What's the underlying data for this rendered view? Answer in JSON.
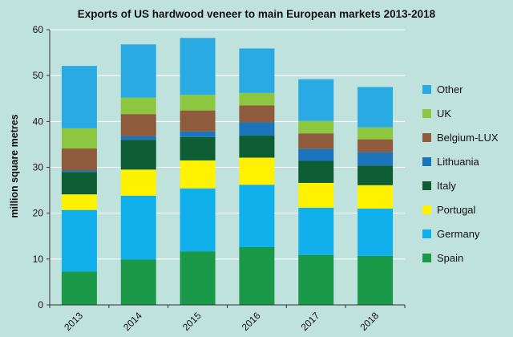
{
  "chart_data": {
    "type": "bar",
    "stacked": true,
    "title": "Exports of US hardwood veneer to main European markets 2013-2018",
    "xlabel": "",
    "ylabel": "million square metres",
    "ylim": [
      0,
      60
    ],
    "yticks": [
      0,
      10,
      20,
      30,
      40,
      50,
      60
    ],
    "grid": true,
    "legend_position": "right",
    "categories": [
      "2013",
      "2014",
      "2015",
      "2016",
      "2017",
      "2018"
    ],
    "series": [
      {
        "name": "Spain",
        "color": "#1a9a48",
        "values": [
          7.3,
          9.9,
          11.7,
          12.6,
          10.9,
          10.7
        ]
      },
      {
        "name": "Germany",
        "color": "#10b0ec",
        "values": [
          13.4,
          13.9,
          13.7,
          13.6,
          10.3,
          10.3
        ]
      },
      {
        "name": "Portugal",
        "color": "#fff200",
        "values": [
          3.4,
          5.7,
          6.1,
          5.9,
          5.4,
          5.1
        ]
      },
      {
        "name": "Italy",
        "color": "#0f5e33",
        "values": [
          4.9,
          6.5,
          5.1,
          4.8,
          4.8,
          4.3
        ]
      },
      {
        "name": "Lithuania",
        "color": "#1b75bb",
        "values": [
          0.3,
          0.8,
          1.2,
          2.9,
          2.6,
          2.9
        ]
      },
      {
        "name": "Belgium-LUX",
        "color": "#8e5b3c",
        "values": [
          4.8,
          4.8,
          4.6,
          3.7,
          3.4,
          2.8
        ]
      },
      {
        "name": "UK",
        "color": "#8dc63f",
        "values": [
          4.4,
          3.6,
          3.4,
          2.7,
          2.7,
          2.6
        ]
      },
      {
        "name": "Other",
        "color": "#29aae2",
        "values": [
          13.6,
          11.6,
          12.4,
          9.7,
          9.1,
          8.8
        ]
      }
    ],
    "legend_order": [
      "Other",
      "UK",
      "Belgium-LUX",
      "Lithuania",
      "Italy",
      "Portugal",
      "Germany",
      "Spain"
    ]
  },
  "colors": {
    "background": "#bfe2dd",
    "grid": "#ffffff",
    "axis": "#333333",
    "text": "#111111"
  }
}
